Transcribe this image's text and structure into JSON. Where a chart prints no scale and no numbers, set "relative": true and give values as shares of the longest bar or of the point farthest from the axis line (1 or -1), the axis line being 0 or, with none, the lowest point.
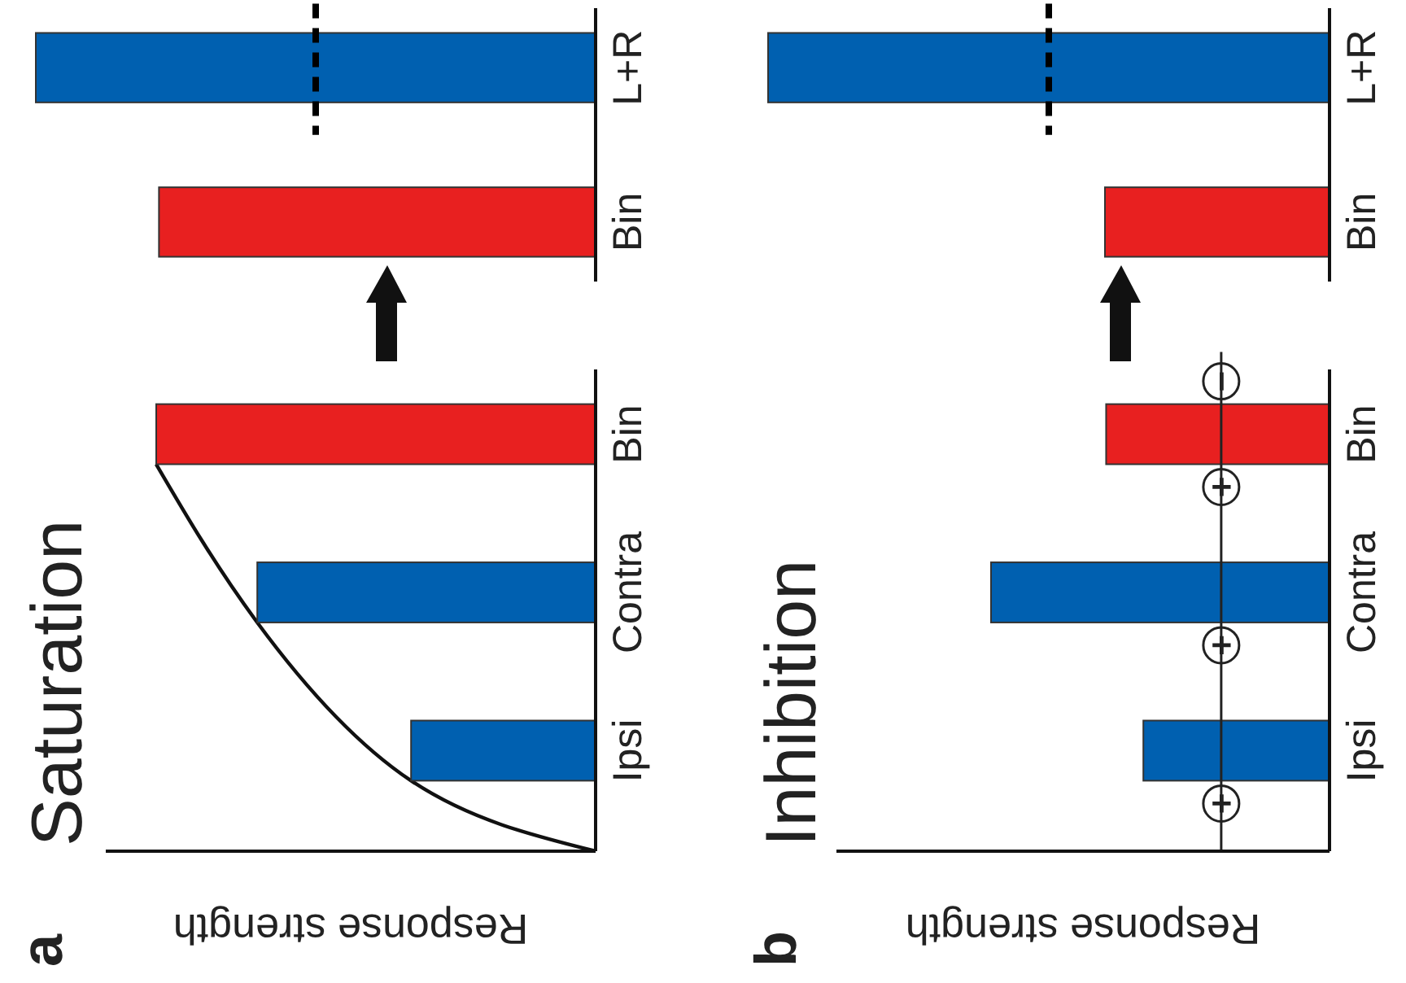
{
  "chart_data": [
    {
      "type": "bar",
      "orientation": "horizontal",
      "title": "Saturation",
      "xlabel": "Response strength",
      "categories": [
        "Bin",
        "Contra",
        "Ipsi"
      ],
      "values": [
        1,
        0.77,
        0.42
      ],
      "colors": [
        "#e82020",
        "#0060b0",
        "#0060b0"
      ],
      "relative": true,
      "annotations": [
        "a"
      ]
    },
    {
      "type": "bar",
      "orientation": "horizontal",
      "categories": [
        "L+R",
        "Bin"
      ],
      "values": [
        1,
        0.78
      ],
      "colors": [
        "#0060b0",
        "#e82020"
      ],
      "relative": true,
      "ref_lines": [
        {
          "axis": "x",
          "value": 0.5,
          "color": "#000000",
          "line_style": "dashed"
        }
      ]
    },
    {
      "type": "bar",
      "orientation": "horizontal",
      "title": "Inhibition",
      "xlabel": "Response strength",
      "categories": [
        "Bin",
        "Contra",
        "Ipsi"
      ],
      "values": [
        0.66,
        1,
        0.55
      ],
      "colors": [
        "#e82020",
        "#0060b0",
        "#0060b0"
      ],
      "relative": true,
      "ref_lines": [
        {
          "axis": "x",
          "value": 0.32,
          "color": "#222222",
          "line_style": "solid"
        }
      ],
      "annotations": [
        "b",
        "−",
        "+",
        "+",
        "+"
      ]
    },
    {
      "type": "bar",
      "orientation": "horizontal",
      "categories": [
        "L+R",
        "Bin"
      ],
      "values": [
        1,
        0.4
      ],
      "colors": [
        "#0060b0",
        "#e82020"
      ],
      "relative": true,
      "ref_lines": [
        {
          "axis": "x",
          "value": 0.5,
          "color": "#000000",
          "line_style": "dashed"
        }
      ]
    }
  ]
}
